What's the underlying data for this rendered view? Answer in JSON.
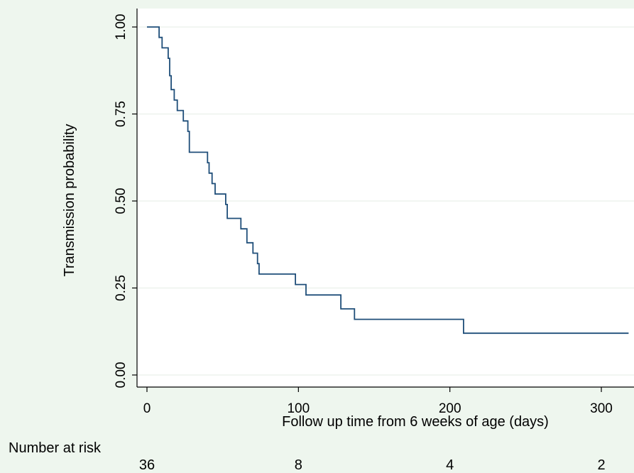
{
  "chart_data": {
    "type": "line",
    "step": true,
    "xlabel": "Follow up time from 6 weeks of age (days)",
    "ylabel": "Transmission probability",
    "xlim": [
      0,
      320
    ],
    "ylim": [
      0,
      1
    ],
    "x_ticks": [
      0,
      100,
      200,
      300
    ],
    "x_tick_labels": [
      "0",
      "100",
      "200",
      "300"
    ],
    "y_ticks": [
      0,
      0.25,
      0.5,
      0.75,
      1
    ],
    "y_tick_labels": [
      "0.00",
      "0.25",
      "0.50",
      "0.75",
      "1.00"
    ],
    "grid": true,
    "series": [
      {
        "color": "#1f4e79",
        "points": [
          [
            0,
            1.0
          ],
          [
            8,
            1.0
          ],
          [
            8,
            0.97
          ],
          [
            10,
            0.97
          ],
          [
            10,
            0.94
          ],
          [
            14,
            0.94
          ],
          [
            14,
            0.91
          ],
          [
            15,
            0.91
          ],
          [
            15,
            0.86
          ],
          [
            16,
            0.86
          ],
          [
            16,
            0.82
          ],
          [
            18,
            0.82
          ],
          [
            18,
            0.79
          ],
          [
            20,
            0.79
          ],
          [
            20,
            0.76
          ],
          [
            24,
            0.76
          ],
          [
            24,
            0.73
          ],
          [
            27,
            0.73
          ],
          [
            27,
            0.7
          ],
          [
            28,
            0.7
          ],
          [
            28,
            0.64
          ],
          [
            40,
            0.64
          ],
          [
            40,
            0.61
          ],
          [
            41,
            0.61
          ],
          [
            41,
            0.58
          ],
          [
            43,
            0.58
          ],
          [
            43,
            0.55
          ],
          [
            45,
            0.55
          ],
          [
            45,
            0.52
          ],
          [
            52,
            0.52
          ],
          [
            52,
            0.49
          ],
          [
            53,
            0.49
          ],
          [
            53,
            0.45
          ],
          [
            62,
            0.45
          ],
          [
            62,
            0.42
          ],
          [
            66,
            0.42
          ],
          [
            66,
            0.38
          ],
          [
            70,
            0.38
          ],
          [
            70,
            0.35
          ],
          [
            73,
            0.35
          ],
          [
            73,
            0.32
          ],
          [
            74,
            0.32
          ],
          [
            74,
            0.29
          ],
          [
            98,
            0.29
          ],
          [
            98,
            0.26
          ],
          [
            105,
            0.26
          ],
          [
            105,
            0.23
          ],
          [
            128,
            0.23
          ],
          [
            128,
            0.19
          ],
          [
            137,
            0.19
          ],
          [
            137,
            0.16
          ],
          [
            209,
            0.16
          ],
          [
            209,
            0.12
          ],
          [
            318,
            0.12
          ]
        ]
      }
    ],
    "risk_table": {
      "label": "Number at risk",
      "x": [
        0,
        100,
        200,
        300
      ],
      "values": [
        "36",
        "8",
        "4",
        "2"
      ]
    }
  }
}
